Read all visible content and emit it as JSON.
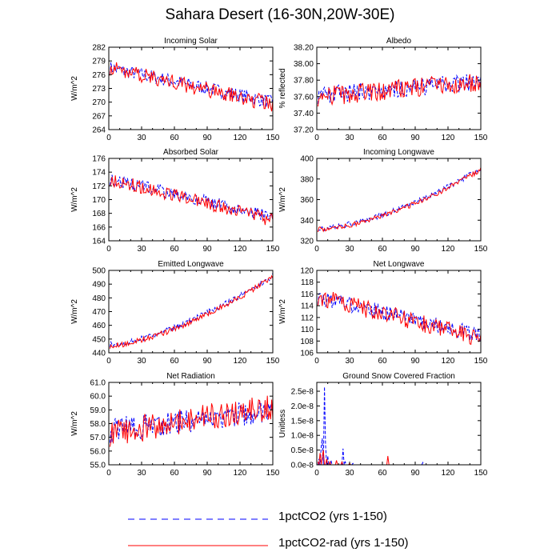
{
  "title": "Sahara Desert (16-30N,20W-30E)",
  "legend": [
    {
      "label": "1pctCO2 (yrs 1-150)",
      "color": "#0000ff",
      "style": "dashed"
    },
    {
      "label": "1pctCO2-rad (yrs 1-150)",
      "color": "#ff0000",
      "style": "solid"
    }
  ],
  "chart_data": [
    {
      "type": "line",
      "title": "Incoming Solar",
      "ylabel": "W/m^2",
      "xlim": [
        0,
        150
      ],
      "xticks": [
        "0",
        "30",
        "60",
        "90",
        "120",
        "150"
      ],
      "ylim": [
        264,
        282
      ],
      "yticks": [
        "264",
        "267",
        "270",
        "273",
        "276",
        "279",
        "282"
      ],
      "series": [
        {
          "name": "1pctCO2 (yrs 1-150)",
          "color": "#0000ff",
          "start": 277.5,
          "end": 270.0,
          "noise": 1.5
        },
        {
          "name": "1pctCO2-rad (yrs 1-150)",
          "color": "#ff0000",
          "start": 277.5,
          "end": 269.5,
          "noise": 1.7
        }
      ]
    },
    {
      "type": "line",
      "title": "Albedo",
      "ylabel": "% reflected",
      "xlim": [
        0,
        150
      ],
      "xticks": [
        "0",
        "30",
        "60",
        "90",
        "120",
        "150"
      ],
      "ylim": [
        37.2,
        38.2
      ],
      "yticks": [
        "37.20",
        "37.40",
        "37.60",
        "37.80",
        "38.00",
        "38.20"
      ],
      "series": [
        {
          "name": "1pctCO2 (yrs 1-150)",
          "color": "#0000ff",
          "start": 37.62,
          "end": 37.78,
          "noise": 0.11
        },
        {
          "name": "1pctCO2-rad (yrs 1-150)",
          "color": "#ff0000",
          "start": 37.6,
          "end": 37.78,
          "noise": 0.12
        }
      ]
    },
    {
      "type": "line",
      "title": "Absorbed Solar",
      "ylabel": "W/m^2",
      "xlim": [
        0,
        150
      ],
      "xticks": [
        "0",
        "30",
        "60",
        "90",
        "120",
        "150"
      ],
      "ylim": [
        164,
        176
      ],
      "yticks": [
        "164",
        "166",
        "168",
        "170",
        "172",
        "174",
        "176"
      ],
      "series": [
        {
          "name": "1pctCO2 (yrs 1-150)",
          "color": "#0000ff",
          "start": 173.0,
          "end": 167.5,
          "noise": 0.9
        },
        {
          "name": "1pctCO2-rad (yrs 1-150)",
          "color": "#ff0000",
          "start": 173.0,
          "end": 167.0,
          "noise": 1.0
        }
      ]
    },
    {
      "type": "line",
      "title": "Incoming Longwave",
      "ylabel": "W/m^2",
      "xlim": [
        0,
        150
      ],
      "xticks": [
        "0",
        "30",
        "60",
        "90",
        "120",
        "150"
      ],
      "ylim": [
        320,
        400
      ],
      "yticks": [
        "320",
        "340",
        "360",
        "380",
        "400"
      ],
      "series": [
        {
          "name": "1pctCO2 (yrs 1-150)",
          "color": "#0000ff",
          "start": 332,
          "end": 390,
          "noise": 2.5,
          "curve": 1.6
        },
        {
          "name": "1pctCO2-rad (yrs 1-150)",
          "color": "#ff0000",
          "start": 331,
          "end": 389,
          "noise": 2.5,
          "curve": 1.6
        }
      ]
    },
    {
      "type": "line",
      "title": "Emitted Longwave",
      "ylabel": "W/m^2",
      "xlim": [
        0,
        150
      ],
      "xticks": [
        "0",
        "30",
        "60",
        "90",
        "120",
        "150"
      ],
      "ylim": [
        440,
        500
      ],
      "yticks": [
        "440",
        "450",
        "460",
        "470",
        "480",
        "490",
        "500"
      ],
      "series": [
        {
          "name": "1pctCO2 (yrs 1-150)",
          "color": "#0000ff",
          "start": 446,
          "end": 496,
          "noise": 2.0,
          "curve": 1.5
        },
        {
          "name": "1pctCO2-rad (yrs 1-150)",
          "color": "#ff0000",
          "start": 445,
          "end": 495,
          "noise": 2.0,
          "curve": 1.5
        }
      ]
    },
    {
      "type": "line",
      "title": "Net Longwave",
      "ylabel": "W/m^2",
      "xlim": [
        0,
        150
      ],
      "xticks": [
        "0",
        "30",
        "60",
        "90",
        "120",
        "150"
      ],
      "ylim": [
        106,
        120
      ],
      "yticks": [
        "106",
        "108",
        "110",
        "112",
        "114",
        "116",
        "118",
        "120"
      ],
      "series": [
        {
          "name": "1pctCO2 (yrs 1-150)",
          "color": "#0000ff",
          "start": 115.5,
          "end": 109.0,
          "noise": 1.3
        },
        {
          "name": "1pctCO2-rad (yrs 1-150)",
          "color": "#ff0000",
          "start": 115.5,
          "end": 108.5,
          "noise": 1.5
        }
      ]
    },
    {
      "type": "line",
      "title": "Net Radiation",
      "ylabel": "W/m^2",
      "xlim": [
        0,
        150
      ],
      "xticks": [
        "0",
        "30",
        "60",
        "90",
        "120",
        "150"
      ],
      "ylim": [
        55.0,
        61.0
      ],
      "yticks": [
        "55.0",
        "56.0",
        "57.0",
        "58.0",
        "59.0",
        "60.0",
        "61.0"
      ],
      "series": [
        {
          "name": "1pctCO2 (yrs 1-150)",
          "color": "#0000ff",
          "start": 57.5,
          "end": 59.0,
          "noise": 0.9
        },
        {
          "name": "1pctCO2-rad (yrs 1-150)",
          "color": "#ff0000",
          "start": 57.3,
          "end": 59.2,
          "noise": 1.0
        }
      ]
    },
    {
      "type": "line",
      "title": "Ground Snow Covered Fraction",
      "ylabel": "Unitless",
      "xlim": [
        0,
        150
      ],
      "xticks": [
        "0",
        "30",
        "60",
        "90",
        "120",
        "150"
      ],
      "ylim": [
        0,
        2.8e-08
      ],
      "yticks": [
        "0.0e-8",
        "0.5e-8",
        "1.0e-8",
        "1.5e-8",
        "2.0e-8",
        "2.5e-8"
      ],
      "ytickvalues": [
        0,
        5e-09,
        1e-08,
        1.5e-08,
        2e-08,
        2.5e-08
      ],
      "series": [
        {
          "name": "1pctCO2 (yrs 1-150)",
          "color": "#0000ff",
          "spikes": [
            [
              2,
              2e-09
            ],
            [
              4,
              6e-09
            ],
            [
              5,
              9e-09
            ],
            [
              7,
              2.65e-08
            ],
            [
              8,
              7e-09
            ],
            [
              10,
              3e-09
            ],
            [
              13,
              1.5e-09
            ],
            [
              24,
              5.5e-09
            ],
            [
              26,
              1e-09
            ],
            [
              33,
              5e-10
            ],
            [
              97,
              8e-10
            ]
          ]
        },
        {
          "name": "1pctCO2-rad (yrs 1-150)",
          "color": "#ff0000",
          "spikes": [
            [
              1,
              1e-09
            ],
            [
              3,
              4e-09
            ],
            [
              5,
              2.5e-09
            ],
            [
              6,
              5e-09
            ],
            [
              9,
              2e-09
            ],
            [
              12,
              1e-09
            ],
            [
              18,
              1.5e-09
            ],
            [
              23,
              1e-09
            ],
            [
              30,
              5e-10
            ],
            [
              65,
              3e-09
            ]
          ]
        }
      ]
    }
  ]
}
